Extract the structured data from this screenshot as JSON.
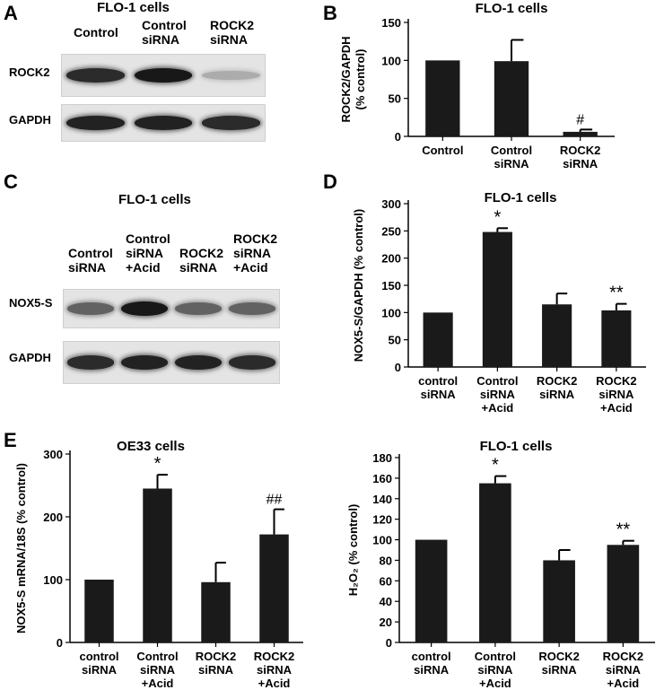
{
  "panels": {
    "A": {
      "letter": "A",
      "title": "FLO-1 cells",
      "lanes": [
        "Control",
        "Control\nsiRNA",
        "ROCK2\nsiRNA"
      ],
      "blots": [
        {
          "label": "ROCK2",
          "bands": [
            0.85,
            0.95,
            0.15
          ]
        },
        {
          "label": "GAPDH",
          "bands": [
            0.9,
            0.9,
            0.85
          ]
        }
      ]
    },
    "C": {
      "letter": "C",
      "title": "FLO-1 cells",
      "lanes": [
        "Control\nsiRNA",
        "Control\nsiRNA\n+Acid",
        "ROCK2\nsiRNA",
        "ROCK2\nsiRNA\n+Acid"
      ],
      "blots": [
        {
          "label": "NOX5-S",
          "bands": [
            0.55,
            0.95,
            0.55,
            0.55
          ]
        },
        {
          "label": "GAPDH",
          "bands": [
            0.85,
            0.9,
            0.9,
            0.85
          ]
        }
      ]
    },
    "B": {
      "letter": "B"
    },
    "D": {
      "letter": "D"
    },
    "E": {
      "letter": "E"
    }
  },
  "chart_data": [
    {
      "id": "B",
      "type": "bar",
      "title": "FLO-1 cells",
      "ylabel": "ROCK2/GAPDH\n(% control)",
      "categories": [
        "Control",
        "Control\nsiRNA",
        "ROCK2\nsiRNA"
      ],
      "values": [
        100,
        99,
        6
      ],
      "errors": [
        0,
        28,
        3
      ],
      "annotations": [
        "",
        "",
        "#"
      ],
      "ylim": [
        0,
        150
      ],
      "yticks": [
        0,
        50,
        100,
        150
      ],
      "bar_color": "#1a1a1a"
    },
    {
      "id": "D",
      "type": "bar",
      "title": "FLO-1 cells",
      "ylabel": "NOX5-S/GAPDH (% control)",
      "categories": [
        "control\nsiRNA",
        "Control\nsiRNA\n+Acid",
        "ROCK2\nsiRNA",
        "ROCK2\nsiRNA\n+Acid"
      ],
      "values": [
        100,
        248,
        115,
        104
      ],
      "errors": [
        0,
        7,
        20,
        12
      ],
      "annotations": [
        "",
        "*",
        "",
        "**"
      ],
      "ylim": [
        0,
        300
      ],
      "yticks": [
        0,
        50,
        100,
        150,
        200,
        250,
        300
      ],
      "bar_color": "#1a1a1a"
    },
    {
      "id": "E",
      "type": "bar",
      "title": "OE33 cells",
      "ylabel": "NOX5-S mRNA/18S (% control)",
      "categories": [
        "control\nsiRNA",
        "Control\nsiRNA\n+Acid",
        "ROCK2\nsiRNA",
        "ROCK2\nsiRNA\n+Acid"
      ],
      "values": [
        100,
        245,
        96,
        172
      ],
      "errors": [
        0,
        22,
        31,
        40
      ],
      "annotations": [
        "",
        "*",
        "",
        "##"
      ],
      "ylim": [
        0,
        300
      ],
      "yticks": [
        0,
        100,
        200,
        300
      ],
      "bar_color": "#1a1a1a"
    },
    {
      "id": "F",
      "type": "bar",
      "title": "FLO-1 cells",
      "ylabel": "H₂O₂ (% control)",
      "categories": [
        "control\nsiRNA",
        "Control\nsiRNA\n+Acid",
        "ROCK2\nsiRNA",
        "ROCK2\nsiRNA\n+Acid"
      ],
      "values": [
        100,
        155,
        80,
        95
      ],
      "errors": [
        0,
        7,
        10,
        4
      ],
      "annotations": [
        "",
        "*",
        "",
        "**"
      ],
      "ylim": [
        0,
        180
      ],
      "yticks": [
        0,
        20,
        40,
        60,
        80,
        100,
        120,
        140,
        160,
        180
      ],
      "bar_color": "#1a1a1a"
    }
  ]
}
